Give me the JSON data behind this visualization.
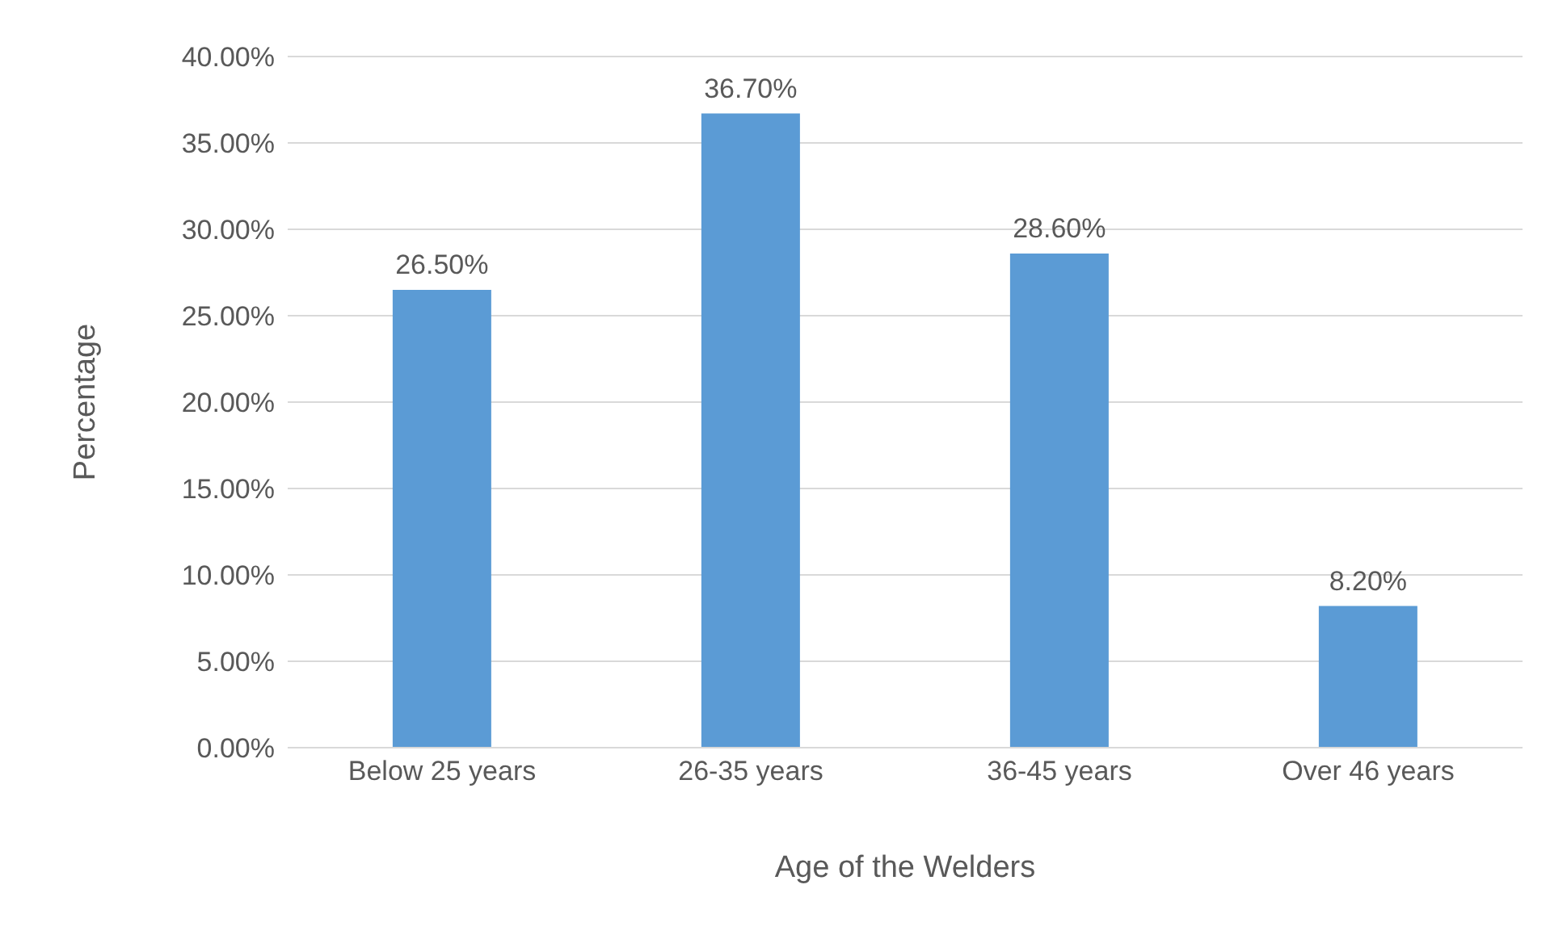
{
  "chart_data": {
    "type": "bar",
    "xlabel": "Age of the Welders",
    "ylabel": "Percentage",
    "categories": [
      "Below 25 years",
      "26-35 years",
      "36-45 years",
      "Over 46 years"
    ],
    "values": [
      26.5,
      36.7,
      28.6,
      8.2
    ],
    "color": "#5b9bd5",
    "value_labels": [
      "26.50%",
      "36.70%",
      "28.60%",
      "8.20%"
    ],
    "ylim": [
      0,
      40
    ],
    "yticks": [
      {
        "value": 0,
        "label": "0.00%"
      },
      {
        "value": 5,
        "label": "5.00%"
      },
      {
        "value": 10,
        "label": "10.00%"
      },
      {
        "value": 15,
        "label": "15.00%"
      },
      {
        "value": 20,
        "label": "20.00%"
      },
      {
        "value": 25,
        "label": "25.00%"
      },
      {
        "value": 30,
        "label": "30.00%"
      },
      {
        "value": 35,
        "label": "35.00%"
      },
      {
        "value": 40,
        "label": "40.00%"
      }
    ],
    "grid": "y",
    "legend": false
  }
}
